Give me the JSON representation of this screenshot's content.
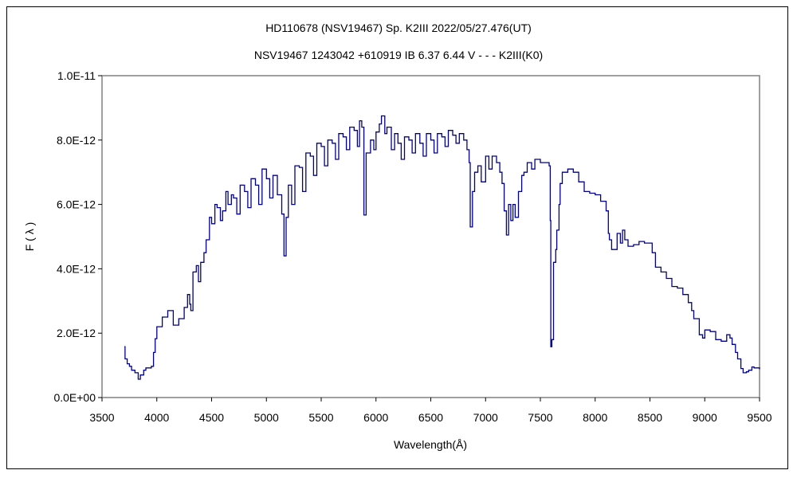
{
  "chart_data": {
    "type": "line",
    "title": "HD110678 (NSV19467)    Sp. K2III    2022/05/27.476(UT)",
    "subtitle": "NSV19467 1243042 +610919 IB 6.37 6.44 V - - - K2III(K0)",
    "xlabel": "Wavelength(Å)",
    "ylabel": "F ( λ )",
    "xlim": [
      3500,
      9500
    ],
    "ylim": [
      0,
      1e-11
    ],
    "grid": false,
    "x_ticks": [
      "3500",
      "4000",
      "4500",
      "5000",
      "5500",
      "6000",
      "6500",
      "7000",
      "7500",
      "8000",
      "8500",
      "9000",
      "9500"
    ],
    "y_ticks": [
      "0.0E+00",
      "2.0E-12",
      "4.0E-12",
      "6.0E-12",
      "8.0E-12",
      "1.0E-11"
    ],
    "y_unit_multiplier": 1e-12,
    "line_color": "#00008B",
    "series": [
      {
        "name": "F(λ)",
        "points": [
          [
            3704,
            1.58
          ],
          [
            3710,
            1.2
          ],
          [
            3730,
            1.05
          ],
          [
            3750,
            0.97
          ],
          [
            3770,
            0.85
          ],
          [
            3800,
            0.77
          ],
          [
            3830,
            0.57
          ],
          [
            3850,
            0.7
          ],
          [
            3880,
            0.85
          ],
          [
            3900,
            0.92
          ],
          [
            3950,
            0.97
          ],
          [
            3970,
            1.4
          ],
          [
            3985,
            1.83
          ],
          [
            4000,
            2.2
          ],
          [
            4050,
            2.5
          ],
          [
            4100,
            2.7
          ],
          [
            4150,
            2.25
          ],
          [
            4200,
            2.45
          ],
          [
            4250,
            2.8
          ],
          [
            4280,
            3.2
          ],
          [
            4300,
            2.9
          ],
          [
            4310,
            2.7
          ],
          [
            4330,
            3.9
          ],
          [
            4360,
            4.1
          ],
          [
            4380,
            3.6
          ],
          [
            4400,
            4.2
          ],
          [
            4430,
            4.5
          ],
          [
            4450,
            4.9
          ],
          [
            4480,
            5.6
          ],
          [
            4500,
            5.4
          ],
          [
            4530,
            6.0
          ],
          [
            4550,
            5.9
          ],
          [
            4580,
            5.5
          ],
          [
            4600,
            5.8
          ],
          [
            4630,
            6.4
          ],
          [
            4650,
            6.0
          ],
          [
            4680,
            6.3
          ],
          [
            4700,
            6.2
          ],
          [
            4730,
            5.7
          ],
          [
            4760,
            6.6
          ],
          [
            4800,
            6.4
          ],
          [
            4830,
            5.9
          ],
          [
            4860,
            6.8
          ],
          [
            4900,
            6.6
          ],
          [
            4930,
            6.0
          ],
          [
            4960,
            7.1
          ],
          [
            5000,
            6.8
          ],
          [
            5030,
            6.2
          ],
          [
            5060,
            6.9
          ],
          [
            5100,
            6.3
          ],
          [
            5140,
            5.7
          ],
          [
            5160,
            4.4
          ],
          [
            5180,
            5.6
          ],
          [
            5200,
            6.6
          ],
          [
            5230,
            6.0
          ],
          [
            5260,
            7.2
          ],
          [
            5300,
            7.15
          ],
          [
            5330,
            6.4
          ],
          [
            5360,
            7.6
          ],
          [
            5400,
            7.5
          ],
          [
            5430,
            6.9
          ],
          [
            5460,
            7.9
          ],
          [
            5500,
            7.8
          ],
          [
            5530,
            7.2
          ],
          [
            5560,
            8.0
          ],
          [
            5600,
            7.9
          ],
          [
            5630,
            7.4
          ],
          [
            5660,
            8.2
          ],
          [
            5700,
            8.1
          ],
          [
            5730,
            7.7
          ],
          [
            5760,
            8.4
          ],
          [
            5800,
            8.3
          ],
          [
            5830,
            7.8
          ],
          [
            5850,
            8.6
          ],
          [
            5870,
            8.4
          ],
          [
            5890,
            5.67
          ],
          [
            5910,
            7.6
          ],
          [
            5950,
            8.0
          ],
          [
            5980,
            7.7
          ],
          [
            6000,
            8.25
          ],
          [
            6030,
            8.5
          ],
          [
            6050,
            8.75
          ],
          [
            6080,
            8.2
          ],
          [
            6100,
            8.4
          ],
          [
            6140,
            7.7
          ],
          [
            6170,
            8.2
          ],
          [
            6200,
            7.9
          ],
          [
            6230,
            7.4
          ],
          [
            6260,
            8.1
          ],
          [
            6300,
            8.0
          ],
          [
            6330,
            7.6
          ],
          [
            6360,
            8.2
          ],
          [
            6400,
            7.9
          ],
          [
            6430,
            7.5
          ],
          [
            6460,
            8.2
          ],
          [
            6500,
            8.0
          ],
          [
            6530,
            7.6
          ],
          [
            6560,
            8.2
          ],
          [
            6600,
            8.1
          ],
          [
            6630,
            7.8
          ],
          [
            6660,
            8.3
          ],
          [
            6700,
            8.15
          ],
          [
            6730,
            7.9
          ],
          [
            6760,
            8.2
          ],
          [
            6800,
            8.0
          ],
          [
            6830,
            7.7
          ],
          [
            6850,
            7.3
          ],
          [
            6860,
            5.3
          ],
          [
            6880,
            6.4
          ],
          [
            6900,
            7.0
          ],
          [
            6930,
            7.2
          ],
          [
            6960,
            6.7
          ],
          [
            7000,
            7.5
          ],
          [
            7030,
            7.1
          ],
          [
            7060,
            7.5
          ],
          [
            7100,
            7.3
          ],
          [
            7130,
            7.0
          ],
          [
            7150,
            6.65
          ],
          [
            7170,
            5.8
          ],
          [
            7190,
            5.05
          ],
          [
            7210,
            6.0
          ],
          [
            7230,
            5.5
          ],
          [
            7250,
            6.0
          ],
          [
            7270,
            5.6
          ],
          [
            7300,
            6.4
          ],
          [
            7330,
            6.9
          ],
          [
            7350,
            7.0
          ],
          [
            7380,
            7.3
          ],
          [
            7420,
            7.1
          ],
          [
            7450,
            7.4
          ],
          [
            7500,
            7.3
          ],
          [
            7550,
            7.3
          ],
          [
            7580,
            7.2
          ],
          [
            7590,
            5.5
          ],
          [
            7595,
            1.58
          ],
          [
            7605,
            1.8
          ],
          [
            7620,
            4.2
          ],
          [
            7640,
            4.6
          ],
          [
            7650,
            5.2
          ],
          [
            7670,
            6.0
          ],
          [
            7680,
            6.65
          ],
          [
            7700,
            7.0
          ],
          [
            7750,
            7.1
          ],
          [
            7800,
            7.0
          ],
          [
            7850,
            6.7
          ],
          [
            7900,
            6.4
          ],
          [
            7950,
            6.35
          ],
          [
            8000,
            6.3
          ],
          [
            8050,
            6.1
          ],
          [
            8100,
            5.8
          ],
          [
            8120,
            5.1
          ],
          [
            8130,
            4.9
          ],
          [
            8150,
            4.6
          ],
          [
            8180,
            4.6
          ],
          [
            8200,
            5.1
          ],
          [
            8230,
            4.8
          ],
          [
            8250,
            5.2
          ],
          [
            8270,
            4.9
          ],
          [
            8300,
            4.7
          ],
          [
            8350,
            4.75
          ],
          [
            8400,
            4.85
          ],
          [
            8450,
            4.8
          ],
          [
            8500,
            4.8
          ],
          [
            8520,
            4.5
          ],
          [
            8550,
            4.05
          ],
          [
            8600,
            3.9
          ],
          [
            8650,
            3.7
          ],
          [
            8700,
            3.45
          ],
          [
            8750,
            3.4
          ],
          [
            8800,
            3.2
          ],
          [
            8850,
            2.95
          ],
          [
            8880,
            2.7
          ],
          [
            8900,
            2.45
          ],
          [
            8950,
            1.95
          ],
          [
            8980,
            1.85
          ],
          [
            9000,
            2.1
          ],
          [
            9050,
            2.05
          ],
          [
            9100,
            1.8
          ],
          [
            9150,
            1.75
          ],
          [
            9200,
            1.95
          ],
          [
            9230,
            1.85
          ],
          [
            9250,
            1.65
          ],
          [
            9280,
            1.4
          ],
          [
            9300,
            1.2
          ],
          [
            9330,
            0.9
          ],
          [
            9350,
            0.77
          ],
          [
            9380,
            0.8
          ],
          [
            9400,
            0.85
          ],
          [
            9430,
            0.95
          ],
          [
            9450,
            0.92
          ],
          [
            9500,
            0.88
          ]
        ]
      }
    ]
  }
}
